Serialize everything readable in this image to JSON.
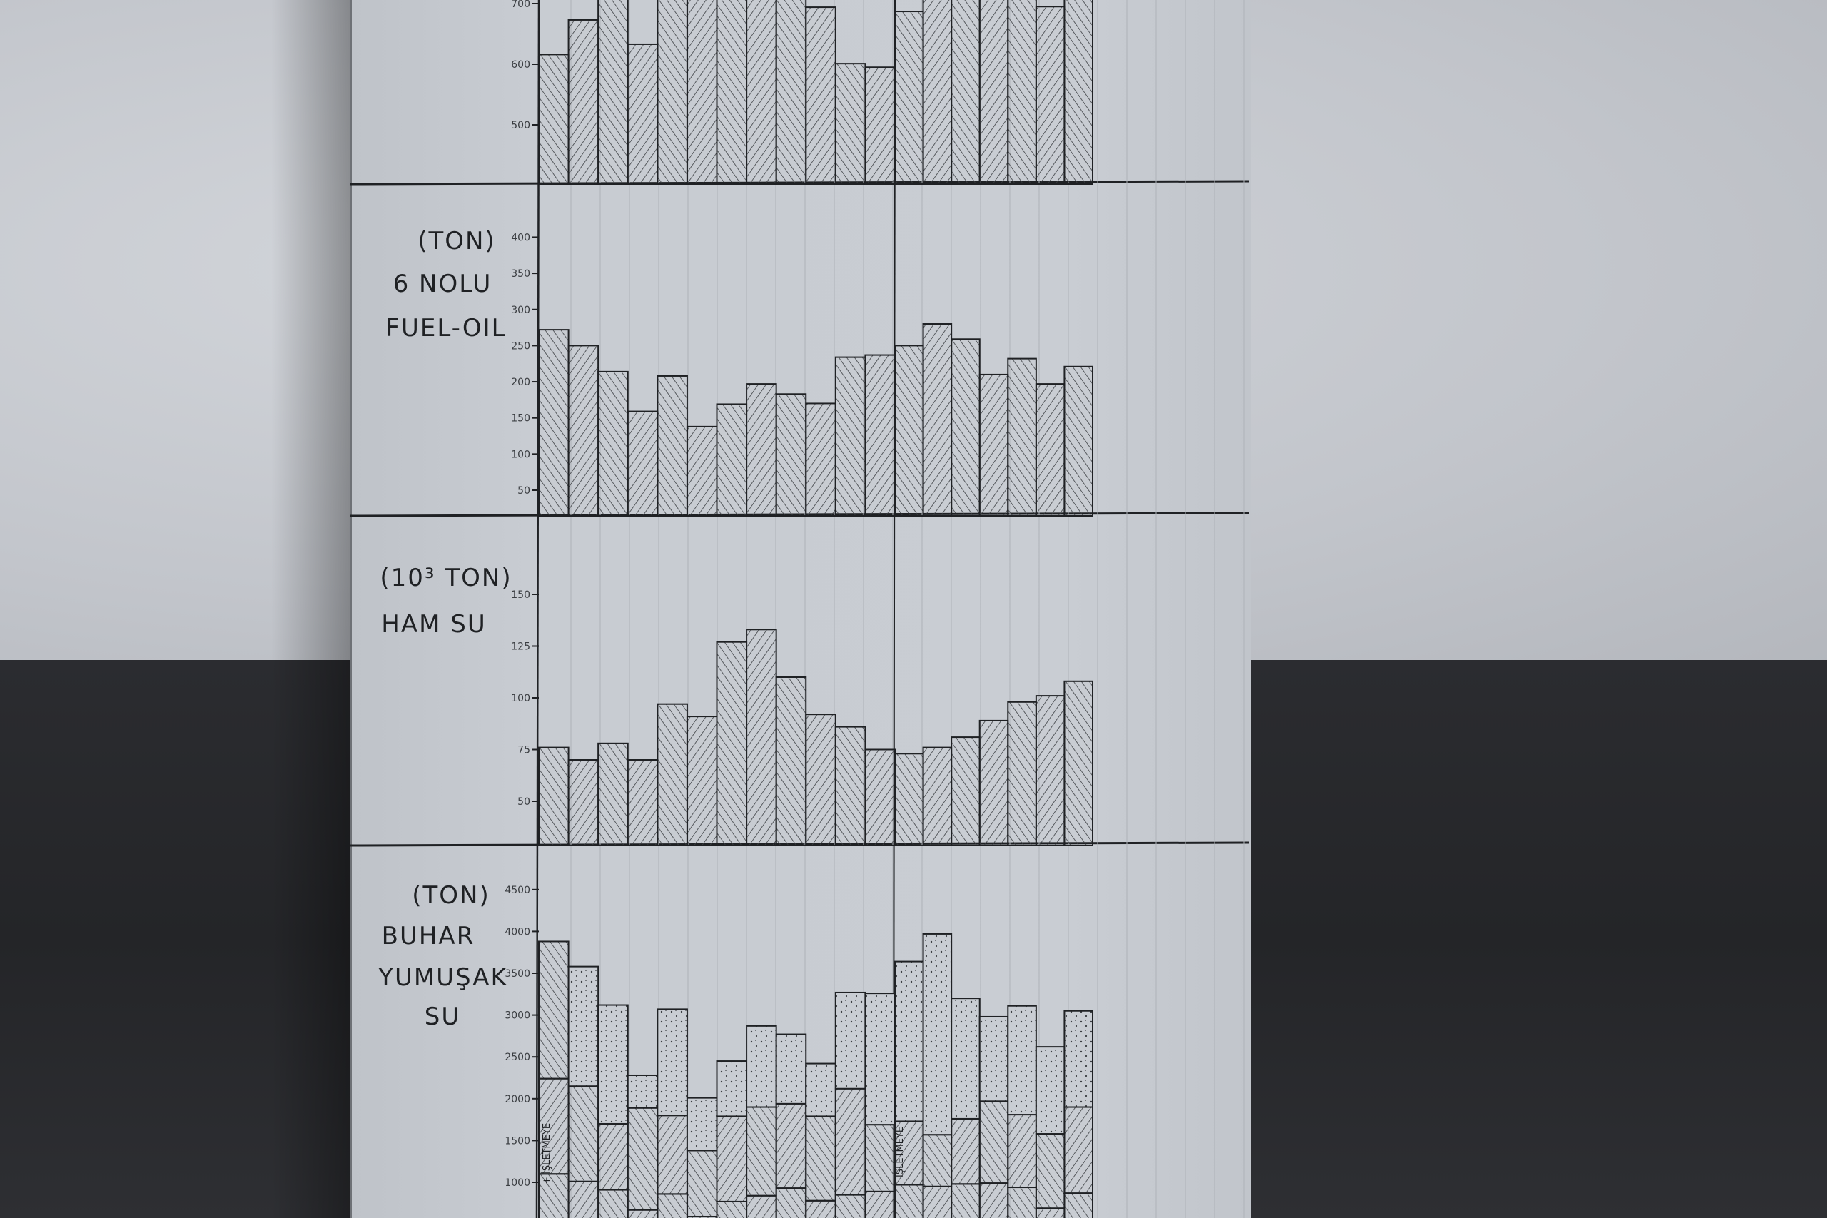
{
  "panels": [
    {
      "unit_label": "",
      "title_lines": []
    },
    {
      "unit_label": "(TON)",
      "title_lines": [
        "6 NOLU",
        "FUEL-OIL"
      ]
    },
    {
      "unit_label": "(10³ TON)",
      "title_lines": [
        "HAM SU"
      ]
    },
    {
      "unit_label": "(TON)",
      "title_lines": [
        "BUHAR",
        "YUMUŞAK",
        "SU"
      ]
    }
  ],
  "annotations": {
    "bar_note_1": "+ İŞLETMEYE",
    "bar_note_2": "İŞLETMEYE"
  },
  "colors": {
    "wall_light": "#c6c9cf",
    "wall_dark": "#2b2c30",
    "board": "#c8ccd2",
    "ink": "#1f2124"
  },
  "chart_data": [
    {
      "type": "bar",
      "title": "",
      "yticks": [
        500,
        600,
        700
      ],
      "values": [
        616,
        673,
        null,
        633,
        null,
        null,
        null,
        null,
        null,
        694,
        601,
        595,
        687,
        null,
        null,
        null,
        null,
        695,
        null
      ],
      "note": "",
      "grid": false
    },
    {
      "type": "bar",
      "title": "6 NOLU FUEL-OIL",
      "ylabel": "(TON)",
      "yticks": [
        50,
        100,
        150,
        200,
        250,
        300,
        350,
        400
      ],
      "values": [
        272,
        250,
        214,
        159,
        208,
        138,
        169,
        197,
        183,
        170,
        234,
        237,
        250,
        280,
        259,
        210,
        232,
        197,
        221
      ],
      "grid": false
    },
    {
      "type": "bar",
      "title": "HAM SU",
      "ylabel": "(10³ TON)",
      "yticks": [
        50,
        75,
        100,
        125,
        150
      ],
      "values": [
        76,
        70,
        78,
        70,
        97,
        91,
        127,
        133,
        110,
        92,
        86,
        75,
        73,
        76,
        81,
        89,
        98,
        101,
        108
      ],
      "grid": false
    },
    {
      "type": "bar",
      "stacked": true,
      "title": "BUHAR YUMUŞAK SU",
      "ylabel": "(TON)",
      "yticks": [
        1000,
        1500,
        2000,
        2500,
        3000,
        3500,
        4000,
        4500
      ],
      "series": [
        {
          "values": [
            1100,
            1010,
            910,
            670,
            860,
            590,
            770,
            840,
            930,
            780,
            850,
            890,
            970,
            950,
            980,
            990,
            940,
            690,
            870
          ]
        },
        {
          "values": [
            1140,
            1140,
            790,
            1220,
            940,
            790,
            1020,
            1060,
            1010,
            1010,
            1270,
            800,
            760,
            620,
            780,
            980,
            870,
            890,
            1030
          ]
        },
        {
          "values": [
            1640,
            1430,
            1420,
            390,
            1270,
            630,
            660,
            970,
            830,
            630,
            1150,
            1570,
            1910,
            2400,
            1440,
            1010,
            1300,
            1040,
            1150
          ]
        }
      ],
      "grid": false
    }
  ]
}
